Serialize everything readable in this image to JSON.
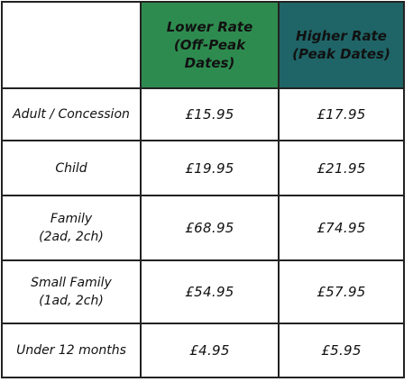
{
  "table": {
    "headers": {
      "lower": [
        "Lower Rate",
        "(Off-Peak",
        "Dates)"
      ],
      "higher": [
        "Higher Rate",
        "(Peak Dates)"
      ]
    },
    "rows": [
      {
        "label": [
          "Adult / Concession"
        ],
        "lower": "£15.95",
        "higher": "£17.95"
      },
      {
        "label": [
          "Child"
        ],
        "lower": "£19.95",
        "higher": "£21.95"
      },
      {
        "label": [
          "Family",
          "(2ad, 2ch)"
        ],
        "lower": "£68.95",
        "higher": "£74.95"
      },
      {
        "label": [
          "Small Family",
          "(1ad, 2ch)"
        ],
        "lower": "£54.95",
        "higher": "£57.95"
      },
      {
        "label": [
          "Under 12 months"
        ],
        "lower": "£4.95",
        "higher": "£5.95"
      }
    ]
  },
  "colors": {
    "lower_header_bg": "#2e8b4f",
    "higher_header_bg": "#1f6467",
    "header_text": "#ffffff",
    "border": "#222222"
  }
}
